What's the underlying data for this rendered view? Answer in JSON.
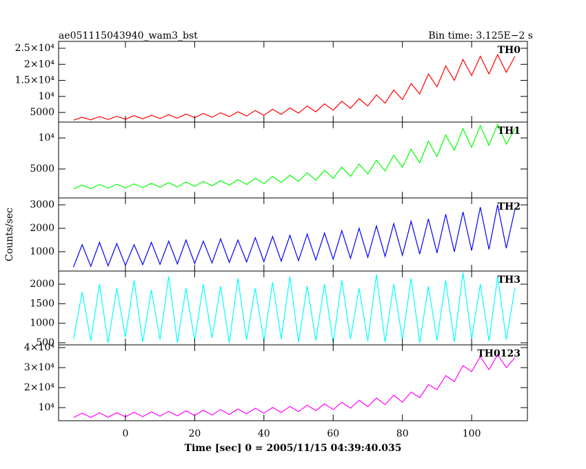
{
  "chart_data": [
    {
      "type": "line",
      "title": "ae051115043940_wam3_bst",
      "annotation": "Bin time: 3.125E−2 s",
      "x": [
        -15,
        -12.5,
        -10,
        -7.5,
        -5,
        -2.5,
        0,
        2.5,
        5,
        7.5,
        10,
        12.5,
        15,
        17.5,
        20,
        22.5,
        25,
        27.5,
        30,
        32.5,
        35,
        37.5,
        40,
        42.5,
        45,
        47.5,
        50,
        52.5,
        55,
        57.5,
        60,
        62.5,
        65,
        67.5,
        70,
        72.5,
        75,
        77.5,
        80,
        82.5,
        85,
        87.5,
        90,
        92.5,
        95,
        97.5,
        100,
        102.5,
        105,
        107.5,
        110,
        112.5
      ],
      "series": [
        {
          "name": "TH0",
          "color": "#ff0000",
          "values": [
            2600,
            3500,
            2700,
            3700,
            2800,
            3800,
            2900,
            4000,
            3000,
            4100,
            3100,
            4300,
            3200,
            4500,
            3400,
            4700,
            3500,
            4900,
            3700,
            5200,
            3900,
            5600,
            4100,
            6000,
            4400,
            6400,
            4800,
            7000,
            5200,
            7700,
            5700,
            8500,
            6300,
            9300,
            7000,
            10500,
            7900,
            12000,
            9000,
            14000,
            10800,
            17000,
            13000,
            19500,
            15000,
            21500,
            16500,
            22500,
            17000,
            23000,
            17500,
            22500
          ]
        }
      ],
      "xlim": [
        -19.3,
        116.1
      ],
      "xticks": [
        0,
        20,
        40,
        60,
        80,
        100
      ],
      "ylim": [
        2000,
        27150
      ],
      "yticks": [
        {
          "value": 5000,
          "label": "5000"
        },
        {
          "value": 10000,
          "label": "10⁴"
        },
        {
          "value": 15000,
          "label": "1.5×10⁴"
        },
        {
          "value": 20000,
          "label": "2×10⁴"
        },
        {
          "value": 25000,
          "label": "2.5×10⁴"
        }
      ]
    },
    {
      "type": "line",
      "x": [
        -15,
        -12.5,
        -10,
        -7.5,
        -5,
        -2.5,
        0,
        2.5,
        5,
        7.5,
        10,
        12.5,
        15,
        17.5,
        20,
        22.5,
        25,
        27.5,
        30,
        32.5,
        35,
        37.5,
        40,
        42.5,
        45,
        47.5,
        50,
        52.5,
        55,
        57.5,
        60,
        62.5,
        65,
        67.5,
        70,
        72.5,
        75,
        77.5,
        80,
        82.5,
        85,
        87.5,
        90,
        92.5,
        95,
        97.5,
        100,
        102.5,
        105,
        107.5,
        110,
        112.5
      ],
      "series": [
        {
          "name": "TH1",
          "color": "#00ff00",
          "values": [
            1800,
            2400,
            1850,
            2500,
            1900,
            2550,
            1950,
            2600,
            2000,
            2700,
            2050,
            2800,
            2100,
            2900,
            2200,
            3000,
            2300,
            3100,
            2400,
            3300,
            2500,
            3500,
            2650,
            3800,
            2800,
            4000,
            3000,
            4400,
            3200,
            4800,
            3500,
            5300,
            3800,
            5800,
            4200,
            6400,
            4700,
            7200,
            5300,
            8200,
            6000,
            9500,
            7000,
            10500,
            8000,
            11500,
            8500,
            12000,
            8800,
            12200,
            9000,
            11500
          ]
        }
      ],
      "xlim": [
        -19.3,
        116.1
      ],
      "xticks": [
        0,
        20,
        40,
        60,
        80,
        100
      ],
      "ylim": [
        333,
        12560
      ],
      "yticks": [
        5000,
        {
          "value": 10000,
          "label": "10⁴"
        }
      ]
    },
    {
      "type": "line",
      "ylabel": "Counts/sec",
      "x": [
        -15,
        -12.5,
        -10,
        -7.5,
        -5,
        -2.5,
        0,
        2.5,
        5,
        7.5,
        10,
        12.5,
        15,
        17.5,
        20,
        22.5,
        25,
        27.5,
        30,
        32.5,
        35,
        37.5,
        40,
        42.5,
        45,
        47.5,
        50,
        52.5,
        55,
        57.5,
        60,
        62.5,
        65,
        67.5,
        70,
        72.5,
        75,
        77.5,
        80,
        82.5,
        85,
        87.5,
        90,
        92.5,
        95,
        97.5,
        100,
        102.5,
        105,
        107.5,
        110,
        112.5
      ],
      "series": [
        {
          "name": "TH2",
          "color": "#0000ff",
          "values": [
            350,
            1300,
            380,
            1400,
            400,
            1350,
            420,
            1300,
            450,
            1400,
            460,
            1450,
            480,
            1500,
            500,
            1450,
            520,
            1550,
            540,
            1500,
            560,
            1600,
            580,
            1650,
            600,
            1700,
            620,
            1750,
            650,
            1800,
            680,
            1900,
            720,
            2000,
            760,
            2100,
            800,
            2200,
            850,
            2300,
            900,
            2400,
            950,
            2600,
            1000,
            2700,
            1050,
            2900,
            1100,
            3000,
            1150,
            2800
          ]
        }
      ],
      "xlim": [
        -19.3,
        116.1
      ],
      "xticks": [
        0,
        20,
        40,
        60,
        80,
        100
      ],
      "ylim": [
        176,
        3294
      ],
      "yticks": [
        1000,
        2000,
        3000
      ]
    },
    {
      "type": "line",
      "x": [
        -15,
        -12.5,
        -10,
        -7.5,
        -5,
        -2.5,
        0,
        2.5,
        5,
        7.5,
        10,
        12.5,
        15,
        17.5,
        20,
        22.5,
        25,
        27.5,
        30,
        32.5,
        35,
        37.5,
        40,
        42.5,
        45,
        47.5,
        50,
        52.5,
        55,
        57.5,
        60,
        62.5,
        65,
        67.5,
        70,
        72.5,
        75,
        77.5,
        80,
        82.5,
        85,
        87.5,
        90,
        92.5,
        95,
        97.5,
        100,
        102.5,
        105,
        107.5,
        110,
        112.5
      ],
      "series": [
        {
          "name": "TH3",
          "color": "#00ffff",
          "values": [
            600,
            1800,
            550,
            2000,
            500,
            1900,
            650,
            2100,
            520,
            1850,
            580,
            2200,
            500,
            1900,
            560,
            2000,
            620,
            1950,
            500,
            2150,
            580,
            1900,
            540,
            2050,
            600,
            2200,
            520,
            1950,
            560,
            2000,
            500,
            2100,
            600,
            1900,
            540,
            2250,
            520,
            2000,
            580,
            2150,
            500,
            1950,
            560,
            2100,
            520,
            2300,
            600,
            2000,
            540,
            2200,
            580,
            1900
          ]
        }
      ],
      "xlim": [
        -19.3,
        116.1
      ],
      "xticks": [
        0,
        20,
        40,
        60,
        80,
        100
      ],
      "ylim": [
        447,
        2336
      ],
      "yticks": [
        500,
        1000,
        1500,
        2000
      ]
    },
    {
      "type": "line",
      "xlabel": "Time [sec] 0 = 2005/11/15 04:39:40.035",
      "x": [
        -15,
        -12.5,
        -10,
        -7.5,
        -5,
        -2.5,
        0,
        2.5,
        5,
        7.5,
        10,
        12.5,
        15,
        17.5,
        20,
        22.5,
        25,
        27.5,
        30,
        32.5,
        35,
        37.5,
        40,
        42.5,
        45,
        47.5,
        50,
        52.5,
        55,
        57.5,
        60,
        62.5,
        65,
        67.5,
        70,
        72.5,
        75,
        77.5,
        80,
        82.5,
        85,
        87.5,
        90,
        92.5,
        95,
        97.5,
        100,
        102.5,
        105,
        107.5,
        110,
        112.5
      ],
      "series": [
        {
          "name": "TH0123",
          "color": "#ff00ff",
          "values": [
            5000,
            7200,
            5100,
            7400,
            5200,
            7500,
            5400,
            7700,
            5500,
            7900,
            5700,
            8100,
            5900,
            8400,
            6100,
            8700,
            6300,
            9000,
            6600,
            9300,
            6900,
            9700,
            7200,
            10100,
            7600,
            10600,
            8000,
            11200,
            8500,
            11900,
            9000,
            12700,
            9700,
            13700,
            10500,
            14800,
            11500,
            16200,
            12700,
            17800,
            15000,
            21500,
            19000,
            26000,
            23000,
            31000,
            28000,
            35500,
            29000,
            36500,
            30000,
            35000
          ]
        }
      ],
      "xlim": [
        -19.3,
        116.1
      ],
      "xticks": [
        0,
        20,
        40,
        60,
        80,
        100
      ],
      "ylim": [
        3450,
        41380
      ],
      "yticks": [
        {
          "value": 10000,
          "label": "10⁴"
        },
        {
          "value": 20000,
          "label": "2×10⁴"
        },
        {
          "value": 30000,
          "label": "3×10⁴"
        },
        {
          "value": 40000,
          "label": "4×10⁴"
        }
      ]
    }
  ]
}
